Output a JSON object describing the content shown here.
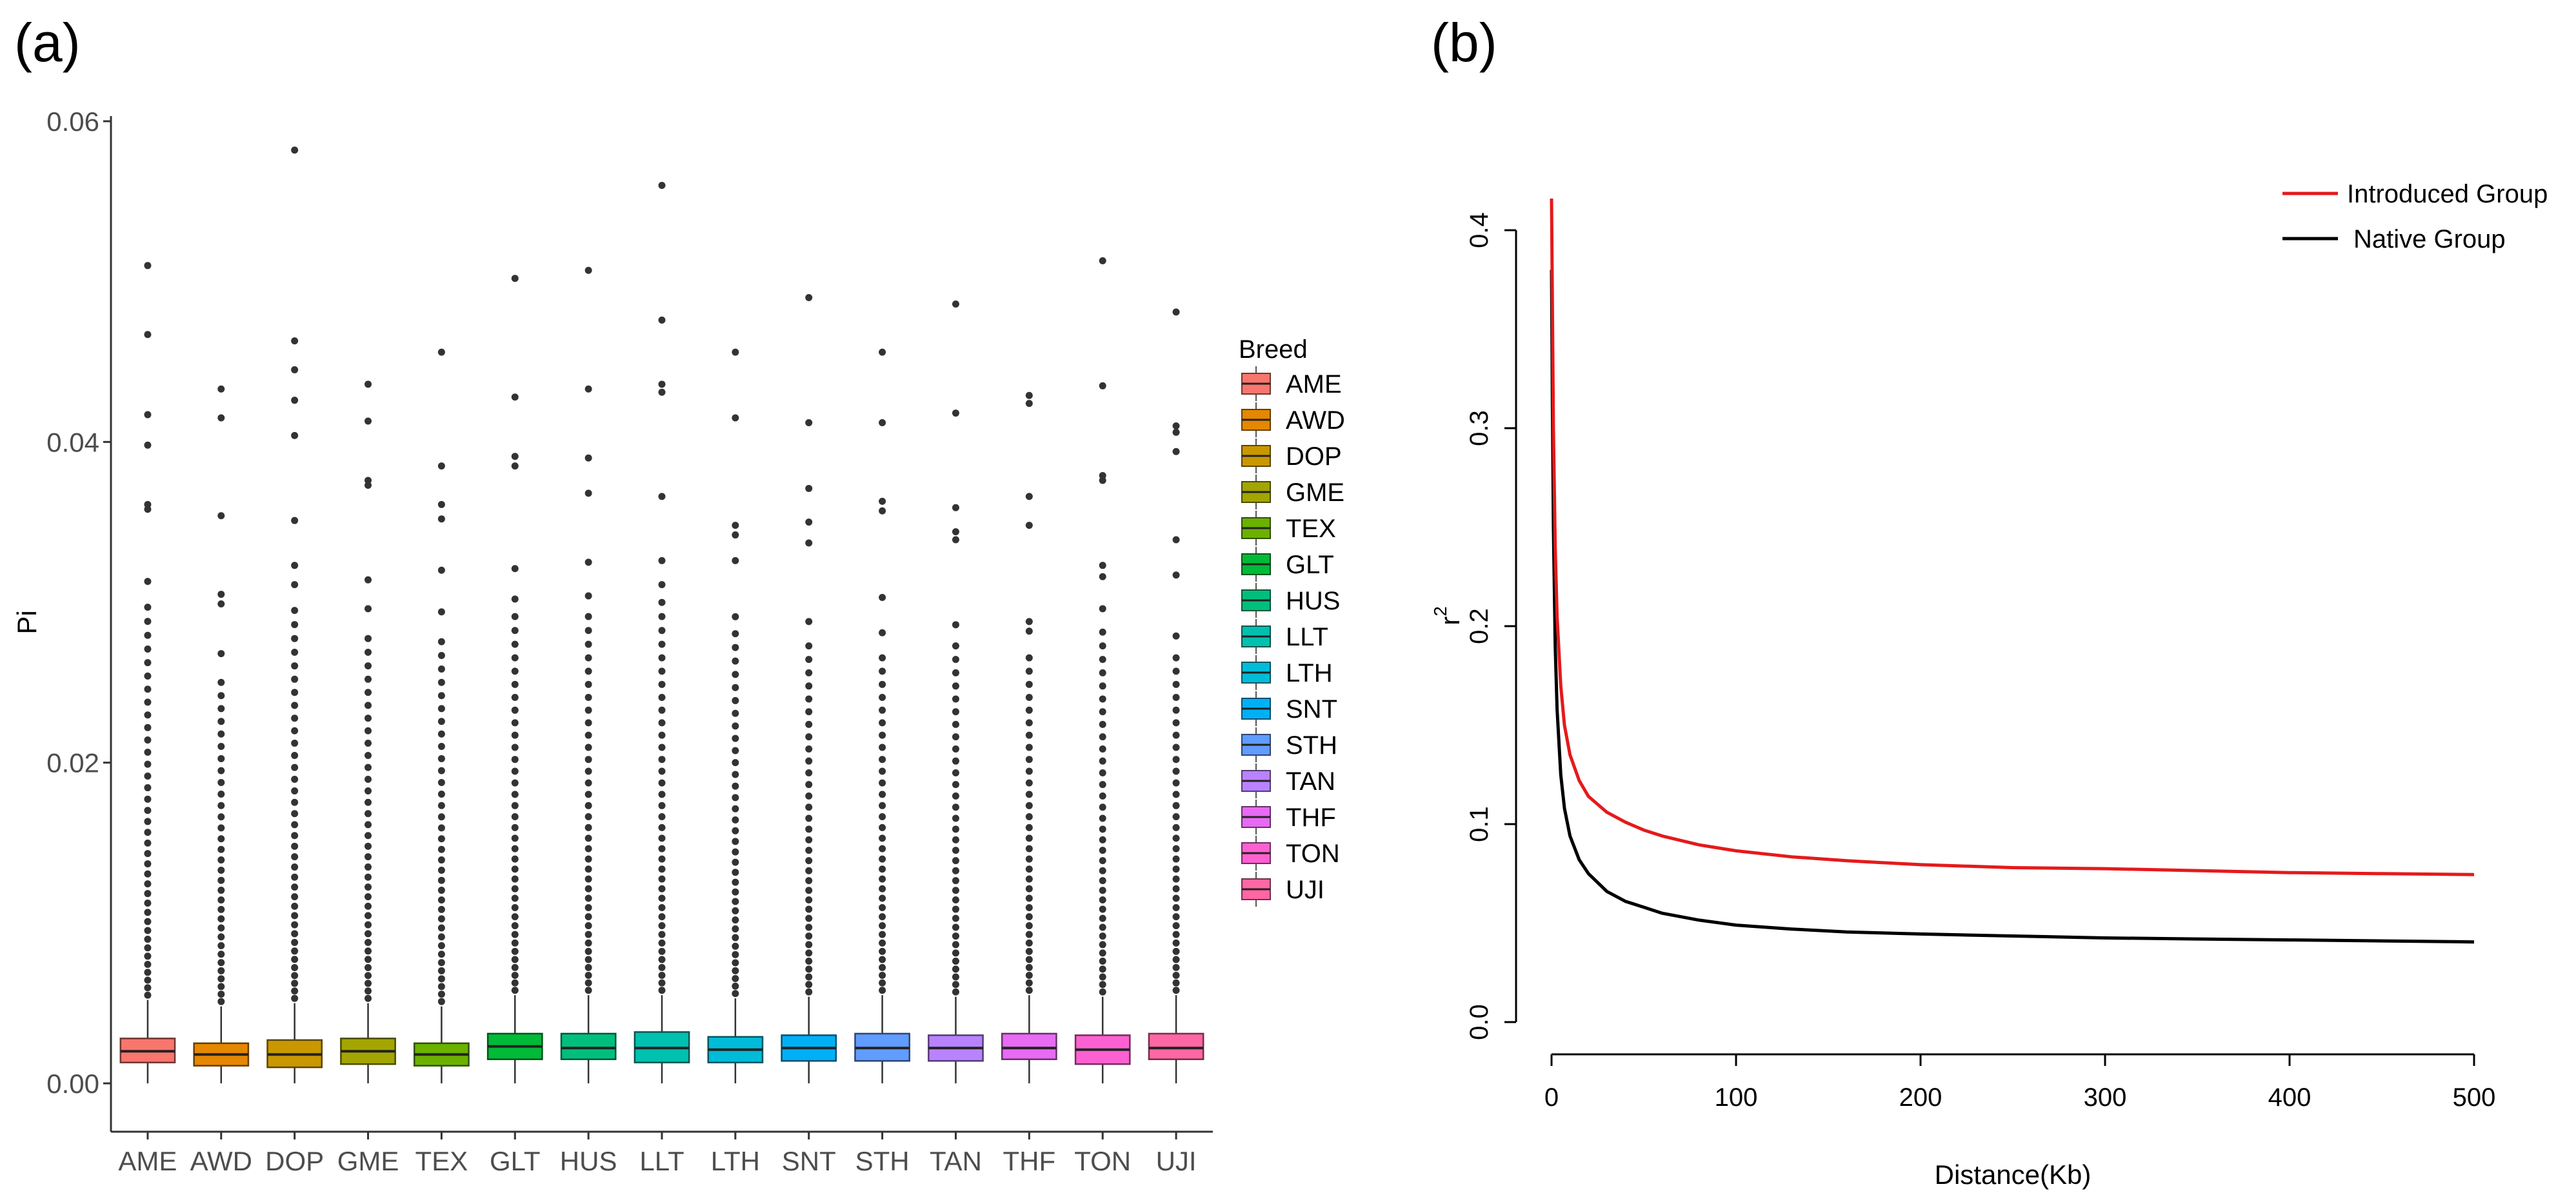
{
  "chart_data": [
    {
      "panel": "(a)",
      "type": "box",
      "title": "",
      "xlabel": "",
      "ylabel": "Pi",
      "ylim": [
        0,
        0.061
      ],
      "yticks": [
        0,
        0.02,
        0.04,
        0.06
      ],
      "ytick_labels": [
        "0.00",
        "0.02",
        "0.04",
        "0.06"
      ],
      "legend_title": "Breed",
      "categories": [
        "AME",
        "AWD",
        "DOP",
        "GME",
        "TEX",
        "GLT",
        "HUS",
        "LLT",
        "LTH",
        "SNT",
        "STH",
        "TAN",
        "THF",
        "TON",
        "UJI"
      ],
      "colors": [
        "#F8766D",
        "#E58700",
        "#C99800",
        "#A3A500",
        "#6BB100",
        "#00BA38",
        "#00BF7D",
        "#00C0AF",
        "#00BCD8",
        "#00B0F6",
        "#619CFF",
        "#B983FF",
        "#E76BF3",
        "#FD61D1",
        "#FF67A4"
      ],
      "boxes": [
        {
          "q1": 0.0013,
          "median": 0.002,
          "q3": 0.0028,
          "whisker_low": 0.0,
          "whisker_high": 0.0052,
          "max_outlier": 0.051,
          "outliers": [
            0.051,
            0.0467,
            0.0417,
            0.0398,
            0.0361,
            0.0358,
            0.0313
          ]
        },
        {
          "q1": 0.0011,
          "median": 0.0018,
          "q3": 0.0025,
          "whisker_low": 0.0,
          "whisker_high": 0.0048,
          "max_outlier": 0.0433,
          "outliers": [
            0.0433,
            0.0415,
            0.0354,
            0.0305,
            0.0299,
            0.0268
          ]
        },
        {
          "q1": 0.001,
          "median": 0.0018,
          "q3": 0.0027,
          "whisker_low": 0.0,
          "whisker_high": 0.005,
          "max_outlier": 0.0582,
          "outliers": [
            0.0582,
            0.0463,
            0.0445,
            0.0426,
            0.0404,
            0.0351,
            0.0323,
            0.0311
          ]
        },
        {
          "q1": 0.0012,
          "median": 0.002,
          "q3": 0.0028,
          "whisker_low": 0.0,
          "whisker_high": 0.005,
          "max_outlier": 0.0436,
          "outliers": [
            0.0436,
            0.0413,
            0.0376,
            0.0373,
            0.0314,
            0.0296
          ]
        },
        {
          "q1": 0.0011,
          "median": 0.0018,
          "q3": 0.0025,
          "whisker_low": 0.0,
          "whisker_high": 0.0048,
          "max_outlier": 0.0456,
          "outliers": [
            0.0456,
            0.0385,
            0.0361,
            0.0352,
            0.032,
            0.0294
          ]
        },
        {
          "q1": 0.0015,
          "median": 0.0023,
          "q3": 0.0031,
          "whisker_low": 0.0,
          "whisker_high": 0.0055,
          "max_outlier": 0.0502,
          "outliers": [
            0.0502,
            0.0428,
            0.0391,
            0.0385,
            0.0321,
            0.0302
          ]
        },
        {
          "q1": 0.0015,
          "median": 0.0022,
          "q3": 0.0031,
          "whisker_low": 0.0,
          "whisker_high": 0.0055,
          "max_outlier": 0.0507,
          "outliers": [
            0.0507,
            0.0433,
            0.039,
            0.0368,
            0.0325,
            0.0304
          ]
        },
        {
          "q1": 0.0013,
          "median": 0.0022,
          "q3": 0.0032,
          "whisker_low": 0.0,
          "whisker_high": 0.0055,
          "max_outlier": 0.056,
          "outliers": [
            0.056,
            0.0476,
            0.0436,
            0.0431,
            0.0366,
            0.0326,
            0.0311
          ]
        },
        {
          "q1": 0.0013,
          "median": 0.0021,
          "q3": 0.0029,
          "whisker_low": 0.0,
          "whisker_high": 0.0053,
          "max_outlier": 0.0456,
          "outliers": [
            0.0456,
            0.0415,
            0.0348,
            0.0342,
            0.0326,
            0.0291
          ]
        },
        {
          "q1": 0.0014,
          "median": 0.0022,
          "q3": 0.003,
          "whisker_low": 0.0,
          "whisker_high": 0.0054,
          "max_outlier": 0.049,
          "outliers": [
            0.049,
            0.0412,
            0.0371,
            0.035,
            0.0337,
            0.0288
          ]
        },
        {
          "q1": 0.0014,
          "median": 0.0022,
          "q3": 0.0031,
          "whisker_low": 0.0,
          "whisker_high": 0.0055,
          "max_outlier": 0.0456,
          "outliers": [
            0.0456,
            0.0412,
            0.0363,
            0.0357,
            0.0303,
            0.0281
          ]
        },
        {
          "q1": 0.0014,
          "median": 0.0022,
          "q3": 0.003,
          "whisker_low": 0.0,
          "whisker_high": 0.0054,
          "max_outlier": 0.0486,
          "outliers": [
            0.0486,
            0.0418,
            0.0359,
            0.0344,
            0.0339,
            0.0286
          ]
        },
        {
          "q1": 0.0015,
          "median": 0.0022,
          "q3": 0.0031,
          "whisker_low": 0.0,
          "whisker_high": 0.0055,
          "max_outlier": 0.0429,
          "outliers": [
            0.0429,
            0.0424,
            0.0366,
            0.0348,
            0.0288,
            0.0282
          ]
        },
        {
          "q1": 0.0012,
          "median": 0.0021,
          "q3": 0.003,
          "whisker_low": 0.0,
          "whisker_high": 0.0054,
          "max_outlier": 0.0513,
          "outliers": [
            0.0513,
            0.0435,
            0.0379,
            0.0376,
            0.0323,
            0.0316,
            0.0296
          ]
        },
        {
          "q1": 0.0015,
          "median": 0.0022,
          "q3": 0.0031,
          "whisker_low": 0.0,
          "whisker_high": 0.0055,
          "max_outlier": 0.0481,
          "outliers": [
            0.0481,
            0.041,
            0.0406,
            0.0394,
            0.0339,
            0.0317,
            0.0279
          ]
        }
      ]
    },
    {
      "panel": "(b)",
      "type": "line",
      "title": "",
      "xlabel": "Distance(Kb)",
      "ylabel": "r",
      "ylabel_superscript": "2",
      "xlim": [
        0,
        500
      ],
      "ylim": [
        0,
        0.42
      ],
      "xticks": [
        0,
        100,
        200,
        300,
        400,
        500
      ],
      "xtick_labels": [
        "0",
        "100",
        "200",
        "300",
        "400",
        "500"
      ],
      "yticks": [
        0,
        0.1,
        0.2,
        0.3,
        0.4
      ],
      "ytick_labels": [
        "0.0",
        "0.1",
        "0.2",
        "0.3",
        "0.4"
      ],
      "legend_position": "top-right",
      "series": [
        {
          "name": "Introduced Group",
          "color": "#e41a1c",
          "x": [
            0,
            0.5,
            1,
            2,
            3,
            5,
            7,
            10,
            15,
            20,
            30,
            40,
            50,
            60,
            80,
            100,
            130,
            160,
            200,
            250,
            300,
            350,
            400,
            450,
            500
          ],
          "y": [
            0.416,
            0.36,
            0.3,
            0.24,
            0.205,
            0.17,
            0.15,
            0.135,
            0.122,
            0.114,
            0.106,
            0.101,
            0.097,
            0.094,
            0.0895,
            0.0865,
            0.0835,
            0.0815,
            0.0795,
            0.078,
            0.0775,
            0.0765,
            0.0755,
            0.075,
            0.0745
          ]
        },
        {
          "name": "Native Group",
          "color": "#000000",
          "x": [
            0,
            0.5,
            1,
            2,
            3,
            5,
            7,
            10,
            15,
            20,
            30,
            40,
            50,
            60,
            80,
            100,
            130,
            160,
            200,
            250,
            300,
            350,
            400,
            450,
            500
          ],
          "y": [
            0.38,
            0.31,
            0.25,
            0.19,
            0.158,
            0.125,
            0.108,
            0.094,
            0.082,
            0.075,
            0.066,
            0.061,
            0.058,
            0.055,
            0.0515,
            0.049,
            0.047,
            0.0455,
            0.0445,
            0.0435,
            0.0425,
            0.042,
            0.0415,
            0.041,
            0.0405
          ]
        }
      ]
    }
  ]
}
